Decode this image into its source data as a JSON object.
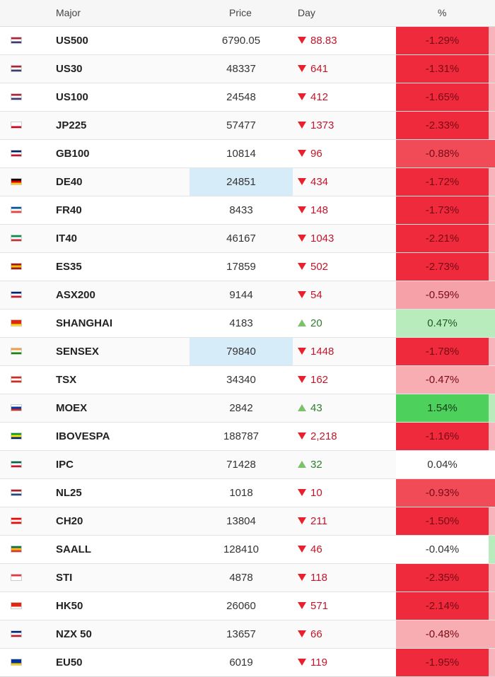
{
  "header": {
    "major": "Major",
    "price": "Price",
    "day": "Day",
    "pct": "%"
  },
  "rows": [
    {
      "flag": "us-flag",
      "colors": [
        "#b22234",
        "#ffffff",
        "#3c3b6e"
      ],
      "name": "US500",
      "price": "6790.05",
      "dir": "down",
      "day": "88.83",
      "pct": "-1.29%",
      "pct_bg": "#ee2a3c",
      "pct_color": "#7a0a14",
      "edge": "#f7b4bb",
      "price_hl": false
    },
    {
      "flag": "us-flag",
      "colors": [
        "#b22234",
        "#ffffff",
        "#3c3b6e"
      ],
      "name": "US30",
      "price": "48337",
      "dir": "down",
      "day": "641",
      "pct": "-1.31%",
      "pct_bg": "#ee2a3c",
      "pct_color": "#7a0a14",
      "edge": "#f7b4bb",
      "price_hl": false
    },
    {
      "flag": "us-flag",
      "colors": [
        "#b22234",
        "#ffffff",
        "#3c3b6e"
      ],
      "name": "US100",
      "price": "24548",
      "dir": "down",
      "day": "412",
      "pct": "-1.65%",
      "pct_bg": "#ee2a3c",
      "pct_color": "#7a0a14",
      "edge": "#f7b4bb",
      "price_hl": false
    },
    {
      "flag": "jp-flag",
      "colors": [
        "#ffffff",
        "#ffffff",
        "#d7001f"
      ],
      "name": "JP225",
      "price": "57477",
      "dir": "down",
      "day": "1373",
      "pct": "-2.33%",
      "pct_bg": "#ee2a3c",
      "pct_color": "#7a0a14",
      "edge": "#f7b4bb",
      "price_hl": false
    },
    {
      "flag": "gb-flag",
      "colors": [
        "#012169",
        "#ffffff",
        "#c8102e"
      ],
      "name": "GB100",
      "price": "10814",
      "dir": "down",
      "day": "96",
      "pct": "-0.88%",
      "pct_bg": "#f24b58",
      "pct_color": "#7a0a14",
      "edge": "#f24b58",
      "price_hl": false
    },
    {
      "flag": "de-flag",
      "colors": [
        "#000000",
        "#dd0000",
        "#ffce00"
      ],
      "name": "DE40",
      "price": "24851",
      "dir": "down",
      "day": "434",
      "pct": "-1.72%",
      "pct_bg": "#ee2a3c",
      "pct_color": "#7a0a14",
      "edge": "#f7b4bb",
      "price_hl": true
    },
    {
      "flag": "fr-flag",
      "colors": [
        "#0055a4",
        "#ffffff",
        "#ef4135"
      ],
      "name": "FR40",
      "price": "8433",
      "dir": "down",
      "day": "148",
      "pct": "-1.73%",
      "pct_bg": "#ee2a3c",
      "pct_color": "#7a0a14",
      "edge": "#f7b4bb",
      "price_hl": false
    },
    {
      "flag": "it-flag",
      "colors": [
        "#009246",
        "#ffffff",
        "#ce2b37"
      ],
      "name": "IT40",
      "price": "46167",
      "dir": "down",
      "day": "1043",
      "pct": "-2.21%",
      "pct_bg": "#ee2a3c",
      "pct_color": "#7a0a14",
      "edge": "#f7b4bb",
      "price_hl": false
    },
    {
      "flag": "es-flag",
      "colors": [
        "#aa151b",
        "#f1bf00",
        "#aa151b"
      ],
      "name": "ES35",
      "price": "17859",
      "dir": "down",
      "day": "502",
      "pct": "-2.73%",
      "pct_bg": "#ee2a3c",
      "pct_color": "#7a0a14",
      "edge": "#f7b4bb",
      "price_hl": false
    },
    {
      "flag": "au-flag",
      "colors": [
        "#00247d",
        "#ffffff",
        "#cf142b"
      ],
      "name": "ASX200",
      "price": "9144",
      "dir": "down",
      "day": "54",
      "pct": "-0.59%",
      "pct_bg": "#f6a1a8",
      "pct_color": "#7a0a14",
      "edge": "#f6a1a8",
      "price_hl": false
    },
    {
      "flag": "cn-flag",
      "colors": [
        "#de2910",
        "#de2910",
        "#ffde00"
      ],
      "name": "SHANGHAI",
      "price": "4183",
      "dir": "up",
      "day": "20",
      "pct": "0.47%",
      "pct_bg": "#b8ecbc",
      "pct_color": "#1d5a22",
      "edge": "#b8ecbc",
      "price_hl": false
    },
    {
      "flag": "in-flag",
      "colors": [
        "#ff9933",
        "#ffffff",
        "#138808"
      ],
      "name": "SENSEX",
      "price": "79840",
      "dir": "down",
      "day": "1448",
      "pct": "-1.78%",
      "pct_bg": "#ee2a3c",
      "pct_color": "#7a0a14",
      "edge": "#f7b4bb",
      "price_hl": true
    },
    {
      "flag": "ca-flag",
      "colors": [
        "#d52b1e",
        "#ffffff",
        "#d52b1e"
      ],
      "name": "TSX",
      "price": "34340",
      "dir": "down",
      "day": "162",
      "pct": "-0.47%",
      "pct_bg": "#f8adb3",
      "pct_color": "#7a0a14",
      "edge": "#f8adb3",
      "price_hl": false
    },
    {
      "flag": "ru-flag",
      "colors": [
        "#ffffff",
        "#0039a6",
        "#d52b1e"
      ],
      "name": "MOEX",
      "price": "2842",
      "dir": "up",
      "day": "43",
      "pct": "1.54%",
      "pct_bg": "#4ed05c",
      "pct_color": "#0f3d14",
      "edge": "#b8ecbc",
      "price_hl": false
    },
    {
      "flag": "br-flag",
      "colors": [
        "#009c3b",
        "#ffdf00",
        "#002776"
      ],
      "name": "IBOVESPA",
      "price": "188787",
      "dir": "down",
      "day": "2,218",
      "pct": "-1.16%",
      "pct_bg": "#ee2a3c",
      "pct_color": "#7a0a14",
      "edge": "#f7b4bb",
      "price_hl": false
    },
    {
      "flag": "mx-flag",
      "colors": [
        "#006847",
        "#ffffff",
        "#ce1126"
      ],
      "name": "IPC",
      "price": "71428",
      "dir": "up",
      "day": "32",
      "pct": "0.04%",
      "pct_bg": "#ffffff",
      "pct_color": "#333333",
      "edge": "#ffffff",
      "price_hl": false
    },
    {
      "flag": "nl-flag",
      "colors": [
        "#ae1c28",
        "#ffffff",
        "#21468b"
      ],
      "name": "NL25",
      "price": "1018",
      "dir": "down",
      "day": "10",
      "pct": "-0.93%",
      "pct_bg": "#f24b58",
      "pct_color": "#7a0a14",
      "edge": "#f24b58",
      "price_hl": false
    },
    {
      "flag": "ch-flag",
      "colors": [
        "#ff0000",
        "#ffffff",
        "#ff0000"
      ],
      "name": "CH20",
      "price": "13804",
      "dir": "down",
      "day": "211",
      "pct": "-1.50%",
      "pct_bg": "#ee2a3c",
      "pct_color": "#7a0a14",
      "edge": "#f7b4bb",
      "price_hl": false
    },
    {
      "flag": "za-flag",
      "colors": [
        "#007749",
        "#ffb612",
        "#de3831"
      ],
      "name": "SAALL",
      "price": "128410",
      "dir": "down",
      "day": "46",
      "pct": "-0.04%",
      "pct_bg": "#ffffff",
      "pct_color": "#333333",
      "edge": "#b8ecbc",
      "price_hl": false
    },
    {
      "flag": "sg-flag",
      "colors": [
        "#ef3340",
        "#ffffff",
        "#ffffff"
      ],
      "name": "STI",
      "price": "4878",
      "dir": "down",
      "day": "118",
      "pct": "-2.35%",
      "pct_bg": "#ee2a3c",
      "pct_color": "#7a0a14",
      "edge": "#f7b4bb",
      "price_hl": false
    },
    {
      "flag": "hk-flag",
      "colors": [
        "#de2910",
        "#de2910",
        "#ffffff"
      ],
      "name": "HK50",
      "price": "26060",
      "dir": "down",
      "day": "571",
      "pct": "-2.14%",
      "pct_bg": "#ee2a3c",
      "pct_color": "#7a0a14",
      "edge": "#f7b4bb",
      "price_hl": false
    },
    {
      "flag": "nz-flag",
      "colors": [
        "#00247d",
        "#ffffff",
        "#cc142b"
      ],
      "name": "NZX 50",
      "price": "13657",
      "dir": "down",
      "day": "66",
      "pct": "-0.48%",
      "pct_bg": "#f8adb3",
      "pct_color": "#7a0a14",
      "edge": "#f8adb3",
      "price_hl": false
    },
    {
      "flag": "eu-flag",
      "colors": [
        "#003399",
        "#003399",
        "#ffcc00"
      ],
      "name": "EU50",
      "price": "6019",
      "dir": "down",
      "day": "119",
      "pct": "-1.95%",
      "pct_bg": "#ee2a3c",
      "pct_color": "#7a0a14",
      "edge": "#f7b4bb",
      "price_hl": false
    }
  ]
}
